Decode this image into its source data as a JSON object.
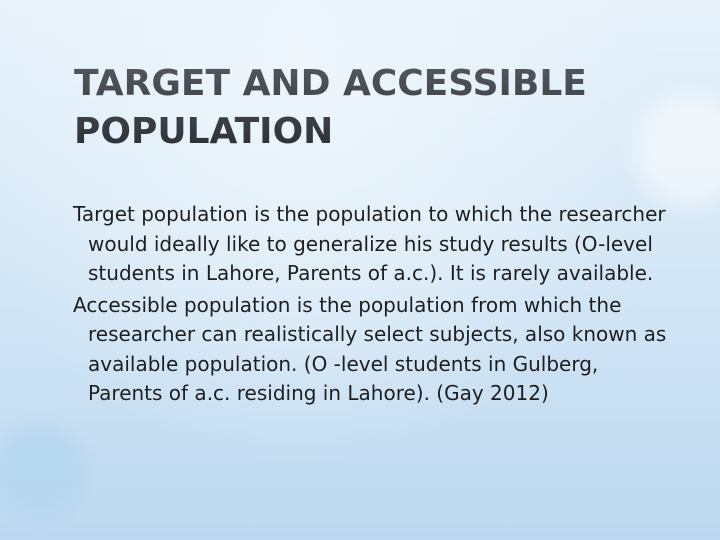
{
  "title": {
    "line1": "TARGET AND ACCESSIBLE",
    "line2": "POPULATION"
  },
  "paragraphs": [
    {
      "term": "Target population",
      "text": " is the population to which the researcher would ideally like to generalize his study results (O-level students in Lahore, Parents of a.c.). It is rarely available."
    },
    {
      "term": "Accessible population",
      "text": " is the population from which the researcher can realistically select subjects, also known as available population. (O -level students in Gulberg, Parents of a.c. residing in Lahore). (Gay 2012)"
    }
  ]
}
